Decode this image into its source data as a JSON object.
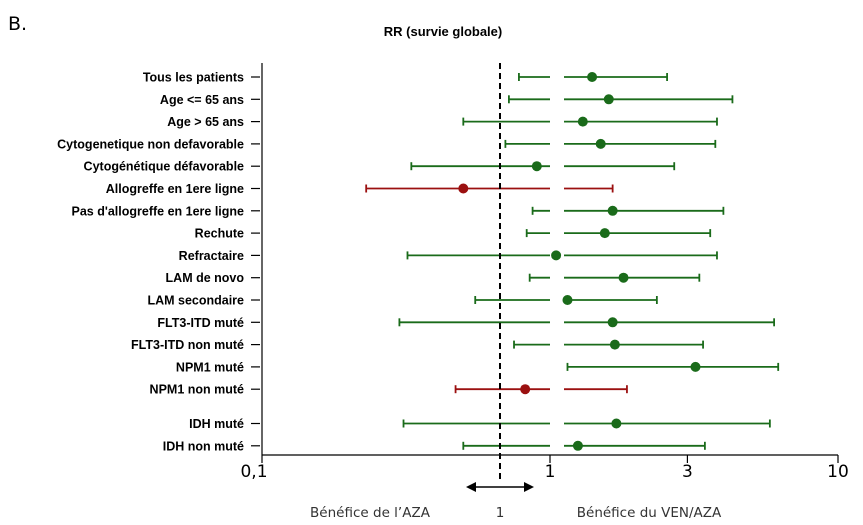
{
  "panel_label": "B.",
  "chart_data": {
    "type": "forest",
    "title": "RR (survie globale)",
    "x_scale": "log",
    "xlim": [
      0.1,
      10
    ],
    "x_ticks": [
      {
        "value": 0.1,
        "label": "0,1"
      },
      {
        "value": 1,
        "label": "1"
      },
      {
        "value": 3,
        "label": "3"
      },
      {
        "value": 10,
        "label": "10"
      }
    ],
    "reference_value": 1,
    "colors": {
      "favorable": "#1a6b1a",
      "unfavorable": "#9b1010"
    },
    "rows": [
      {
        "label": "Tous les patients",
        "estimate": 1.4,
        "lower": 0.78,
        "upper": 2.55,
        "color": "favorable"
      },
      {
        "label": "Age <= 65 ans",
        "estimate": 1.6,
        "lower": 0.72,
        "upper": 4.3,
        "color": "favorable"
      },
      {
        "label": "Age > 65 ans",
        "estimate": 1.3,
        "lower": 0.5,
        "upper": 3.8,
        "color": "favorable"
      },
      {
        "label": "Cytogenetique non defavorable",
        "estimate": 1.5,
        "lower": 0.7,
        "upper": 3.75,
        "color": "favorable"
      },
      {
        "label": "Cytogénétique défavorable",
        "estimate": 0.9,
        "lower": 0.33,
        "upper": 2.7,
        "color": "favorable"
      },
      {
        "label": "Allogreffe en 1ere ligne",
        "estimate": 0.5,
        "lower": 0.23,
        "upper": 1.65,
        "color": "unfavorable"
      },
      {
        "label": "Pas d'allogreffe en 1ere ligne",
        "estimate": 1.65,
        "lower": 0.87,
        "upper": 4.0,
        "color": "favorable"
      },
      {
        "label": "Rechute",
        "estimate": 1.55,
        "lower": 0.83,
        "upper": 3.6,
        "color": "favorable"
      },
      {
        "label": "Refractaire",
        "estimate": 1.05,
        "lower": 0.32,
        "upper": 3.8,
        "color": "favorable"
      },
      {
        "label": "LAM de novo",
        "estimate": 1.8,
        "lower": 0.85,
        "upper": 3.3,
        "color": "favorable"
      },
      {
        "label": "LAM secondaire",
        "estimate": 1.15,
        "lower": 0.55,
        "upper": 2.35,
        "color": "favorable"
      },
      {
        "label": "FLT3-ITD muté",
        "estimate": 1.65,
        "lower": 0.3,
        "upper": 6.0,
        "color": "favorable"
      },
      {
        "label": "FLT3-ITD non muté",
        "estimate": 1.68,
        "lower": 0.75,
        "upper": 3.4,
        "color": "favorable"
      },
      {
        "label": "NPM1 muté",
        "estimate": 3.2,
        "lower": 1.15,
        "upper": 6.2,
        "color": "favorable"
      },
      {
        "label": "NPM1 non muté",
        "estimate": 0.82,
        "lower": 0.47,
        "upper": 1.85,
        "color": "unfavorable"
      },
      {
        "label": "IDH muté",
        "estimate": 1.7,
        "lower": 0.31,
        "upper": 5.8,
        "color": "favorable"
      },
      {
        "label": "IDH non muté",
        "estimate": 1.25,
        "lower": 0.5,
        "upper": 3.45,
        "color": "favorable"
      }
    ],
    "annotations": {
      "left": "Bénéfice de l’AZA",
      "center": "1",
      "right": "Bénéfice du VEN/AZA"
    }
  }
}
